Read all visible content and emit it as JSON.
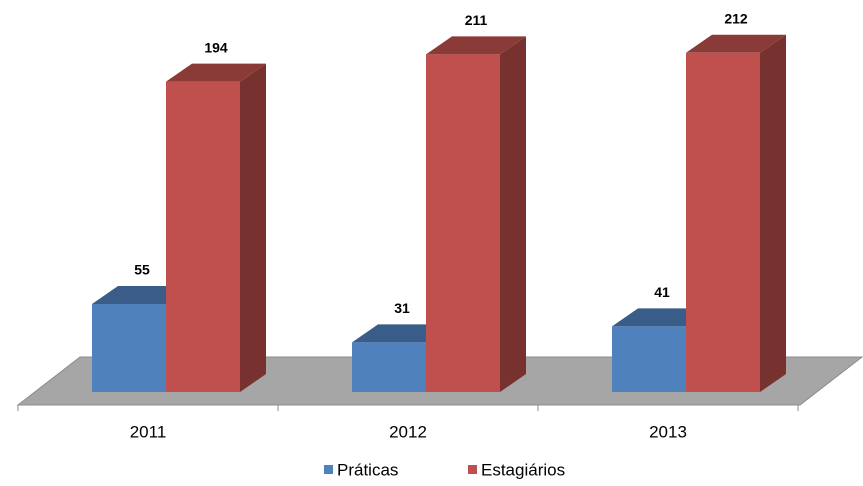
{
  "chart_data": {
    "type": "bar3d",
    "categories": [
      "2011",
      "2012",
      "2013"
    ],
    "series": [
      {
        "name": "Práticas",
        "color": "#4f81bd",
        "values": [
          55,
          31,
          41
        ]
      },
      {
        "name": "Estagiários",
        "color": "#c0504d",
        "values": [
          194,
          211,
          212
        ]
      }
    ],
    "data_labels": true,
    "legend": "bottom"
  }
}
